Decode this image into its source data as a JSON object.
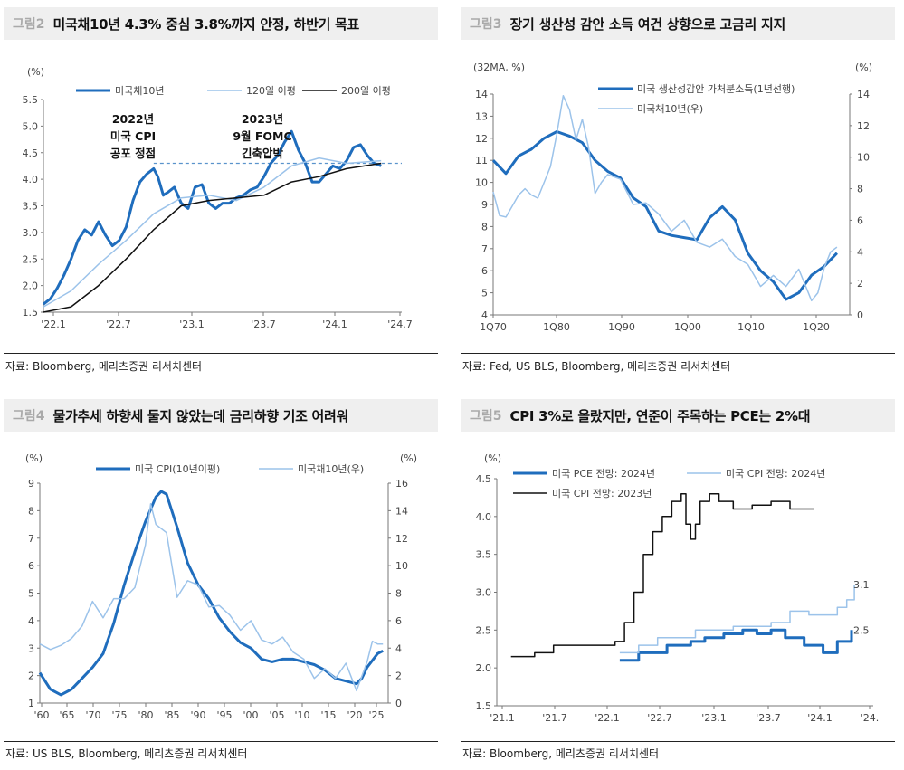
{
  "colors": {
    "dark_blue": "#1f6dbd",
    "light_blue": "#9cc3ea",
    "black": "#111111",
    "dashed": "#5a93cc"
  },
  "panels": [
    {
      "tag": "그림2",
      "title": "미국채10년 4.3% 중심 3.8%까지 안정, 하반기 목표",
      "source": "자료: Bloomberg, 메리츠증권 리서치센터"
    },
    {
      "tag": "그림3",
      "title": "장기 생산성 감안 소득 여건 상향으로 고금리 지지",
      "source": "자료: Fed, US BLS, Bloomberg, 메리츠증권 리서치센터"
    },
    {
      "tag": "그림4",
      "title": "물가추세 하향세 둘지 않았는데 금리하향 기조 어려워",
      "source": "자료: US BLS, Bloomberg, 메리츠증권 리서치센터"
    },
    {
      "tag": "그림5",
      "title": "CPI 3%로 올랐지만, 연준이 주목하는 PCE는 2%대",
      "source": "자료: Bloomberg, 메리츠증권 리서치센터"
    }
  ],
  "chart_data": [
    {
      "type": "line",
      "y_unit": "(%)",
      "ylim": [
        1.5,
        5.5
      ],
      "yticks": [
        "1.5",
        "2.0",
        "2.5",
        "3.0",
        "3.5",
        "4.0",
        "4.5",
        "5.0",
        "5.5"
      ],
      "xticks": [
        "'22.1",
        "'22.7",
        "'23.1",
        "'23.7",
        "'24.1",
        "'24.7"
      ],
      "xlim": [
        2022.0,
        2024.6
      ],
      "reference_line": 4.3,
      "annotations": [
        {
          "lines": [
            "2022년",
            "미국 CPI",
            "공포 정점"
          ],
          "x": 2022.8
        },
        {
          "lines": [
            "2023년",
            "9월 FOMC",
            "긴축압박"
          ],
          "x": 2023.75
        }
      ],
      "series": [
        {
          "name": "미국채10년",
          "color": "#1f6dbd",
          "width": 3,
          "x": [
            2022.0,
            2022.05,
            2022.1,
            2022.15,
            2022.2,
            2022.25,
            2022.3,
            2022.35,
            2022.4,
            2022.45,
            2022.5,
            2022.55,
            2022.6,
            2022.65,
            2022.7,
            2022.75,
            2022.8,
            2022.83,
            2022.87,
            2022.9,
            2022.95,
            2023.0,
            2023.05,
            2023.1,
            2023.15,
            2023.2,
            2023.25,
            2023.3,
            2023.35,
            2023.4,
            2023.45,
            2023.5,
            2023.55,
            2023.6,
            2023.65,
            2023.7,
            2023.75,
            2023.8,
            2023.85,
            2023.9,
            2023.95,
            2024.0,
            2024.05,
            2024.1,
            2024.15,
            2024.2,
            2024.25,
            2024.3,
            2024.35,
            2024.4,
            2024.45
          ],
          "y": [
            1.65,
            1.75,
            1.95,
            2.2,
            2.5,
            2.85,
            3.05,
            2.95,
            3.2,
            2.95,
            2.75,
            2.85,
            3.1,
            3.6,
            3.95,
            4.1,
            4.2,
            4.05,
            3.7,
            3.75,
            3.85,
            3.55,
            3.45,
            3.85,
            3.9,
            3.55,
            3.45,
            3.55,
            3.55,
            3.65,
            3.7,
            3.8,
            3.85,
            4.05,
            4.3,
            4.45,
            4.7,
            4.9,
            4.55,
            4.3,
            3.95,
            3.95,
            4.1,
            4.25,
            4.2,
            4.35,
            4.6,
            4.65,
            4.45,
            4.3,
            4.25
          ]
        },
        {
          "name": "120일 이평",
          "color": "#9cc3ea",
          "width": 1.5,
          "x": [
            2022.0,
            2022.2,
            2022.4,
            2022.6,
            2022.8,
            2023.0,
            2023.2,
            2023.4,
            2023.6,
            2023.8,
            2024.0,
            2024.2,
            2024.45
          ],
          "y": [
            1.6,
            1.9,
            2.4,
            2.85,
            3.35,
            3.65,
            3.7,
            3.6,
            3.85,
            4.25,
            4.4,
            4.3,
            4.35
          ]
        },
        {
          "name": "200일 이평",
          "color": "#111111",
          "width": 1.5,
          "x": [
            2022.0,
            2022.2,
            2022.4,
            2022.6,
            2022.8,
            2023.0,
            2023.2,
            2023.4,
            2023.6,
            2023.8,
            2024.0,
            2024.2,
            2024.45
          ],
          "y": [
            1.5,
            1.6,
            2.0,
            2.5,
            3.05,
            3.5,
            3.6,
            3.65,
            3.7,
            3.95,
            4.05,
            4.2,
            4.3
          ]
        }
      ]
    },
    {
      "type": "line",
      "y_unit_left": "(32MA, %)",
      "y_unit_right": "(%)",
      "ylim_left": [
        4,
        14
      ],
      "ylim_right": [
        0,
        14
      ],
      "yticks_left": [
        "4",
        "5",
        "6",
        "7",
        "8",
        "9",
        "10",
        "11",
        "12",
        "13",
        "14"
      ],
      "yticks_right": [
        "0",
        "2",
        "4",
        "6",
        "8",
        "10",
        "12",
        "14"
      ],
      "xticks": [
        "1Q70",
        "1Q80",
        "1Q90",
        "1Q00",
        "1Q10",
        "1Q20"
      ],
      "xlim": [
        1970,
        2026
      ],
      "series": [
        {
          "name": "미국 생산성감안 가처분소득(1년선행)",
          "axis": "left",
          "color": "#1f6dbd",
          "width": 3,
          "x": [
            1970,
            1972,
            1974,
            1976,
            1978,
            1980,
            1982,
            1984,
            1986,
            1988,
            1990,
            1992,
            1994,
            1996,
            1998,
            2000,
            2002,
            2004,
            2006,
            2008,
            2010,
            2012,
            2014,
            2016,
            2018,
            2020,
            2022,
            2024
          ],
          "y": [
            11.0,
            10.4,
            11.2,
            11.5,
            12.0,
            12.3,
            12.1,
            11.8,
            11.0,
            10.5,
            10.2,
            9.3,
            8.9,
            7.8,
            7.6,
            7.5,
            7.4,
            8.4,
            8.9,
            8.3,
            6.8,
            6.0,
            5.5,
            4.7,
            5.0,
            5.8,
            6.2,
            6.8
          ]
        },
        {
          "name": "미국채10년(우)",
          "axis": "right",
          "color": "#9cc3ea",
          "width": 1.5,
          "x": [
            1970,
            1971,
            1972,
            1973,
            1974,
            1975,
            1976,
            1977,
            1978,
            1979,
            1980,
            1981,
            1982,
            1983,
            1984,
            1985,
            1986,
            1987,
            1988,
            1990,
            1992,
            1994,
            1996,
            1998,
            2000,
            2002,
            2004,
            2006,
            2008,
            2010,
            2012,
            2014,
            2016,
            2018,
            2020,
            2021,
            2022,
            2023,
            2024
          ],
          "y": [
            7.8,
            6.3,
            6.2,
            6.9,
            7.6,
            8.0,
            7.6,
            7.4,
            8.4,
            9.4,
            11.5,
            13.9,
            13.0,
            11.1,
            12.4,
            10.6,
            7.7,
            8.4,
            8.9,
            8.6,
            7.0,
            7.1,
            6.4,
            5.3,
            6.0,
            4.6,
            4.3,
            4.8,
            3.7,
            3.2,
            1.8,
            2.5,
            1.8,
            2.9,
            0.9,
            1.4,
            3.0,
            4.0,
            4.3
          ]
        }
      ]
    },
    {
      "type": "line",
      "y_unit_left": "(%)",
      "y_unit_right": "(%)",
      "ylim_left": [
        1,
        9
      ],
      "ylim_right": [
        0,
        16
      ],
      "yticks_left": [
        "1",
        "2",
        "3",
        "4",
        "5",
        "6",
        "7",
        "8",
        "9"
      ],
      "yticks_right": [
        "0",
        "2",
        "4",
        "6",
        "8",
        "10",
        "12",
        "14",
        "16"
      ],
      "xticks": [
        "'60",
        "'65",
        "'70",
        "'75",
        "'80",
        "'85",
        "'90",
        "'95",
        "'00",
        "'05",
        "'10",
        "'15",
        "'20",
        "'25"
      ],
      "xlim": [
        1960,
        2026
      ],
      "series": [
        {
          "name": "미국 CPI(10년이평)",
          "axis": "left",
          "color": "#1f6dbd",
          "width": 3,
          "x": [
            1960,
            1962,
            1964,
            1966,
            1968,
            1970,
            1972,
            1974,
            1976,
            1978,
            1980,
            1982,
            1983,
            1984,
            1986,
            1988,
            1990,
            1992,
            1994,
            1996,
            1998,
            2000,
            2002,
            2004,
            2006,
            2008,
            2010,
            2012,
            2014,
            2016,
            2018,
            2020,
            2021,
            2022,
            2024,
            2025
          ],
          "y": [
            2.1,
            1.5,
            1.3,
            1.5,
            1.9,
            2.3,
            2.8,
            3.9,
            5.3,
            6.5,
            7.6,
            8.5,
            8.7,
            8.6,
            7.4,
            6.1,
            5.3,
            4.8,
            4.1,
            3.6,
            3.2,
            3.0,
            2.6,
            2.5,
            2.6,
            2.6,
            2.5,
            2.4,
            2.2,
            1.9,
            1.8,
            1.7,
            1.9,
            2.3,
            2.8,
            2.9
          ]
        },
        {
          "name": "미국채10년(우)",
          "axis": "right",
          "color": "#9cc3ea",
          "width": 1.5,
          "x": [
            1960,
            1962,
            1964,
            1966,
            1968,
            1970,
            1972,
            1974,
            1976,
            1978,
            1980,
            1981,
            1982,
            1984,
            1986,
            1988,
            1990,
            1992,
            1994,
            1996,
            1998,
            2000,
            2002,
            2004,
            2006,
            2008,
            2010,
            2012,
            2014,
            2016,
            2018,
            2020,
            2022,
            2023,
            2024,
            2025
          ],
          "y": [
            4.3,
            3.9,
            4.2,
            4.7,
            5.6,
            7.4,
            6.2,
            7.6,
            7.6,
            8.4,
            11.5,
            14.5,
            13.0,
            12.4,
            7.7,
            8.9,
            8.6,
            7.0,
            7.1,
            6.4,
            5.3,
            6.0,
            4.6,
            4.3,
            4.8,
            3.7,
            3.2,
            1.8,
            2.5,
            1.8,
            2.9,
            0.9,
            3.0,
            4.5,
            4.3,
            4.3
          ]
        }
      ]
    },
    {
      "type": "line",
      "y_unit": "(%)",
      "ylim": [
        1.5,
        4.5
      ],
      "yticks": [
        "1.5",
        "2.0",
        "2.5",
        "3.0",
        "3.5",
        "4.0",
        "4.5"
      ],
      "xticks": [
        "'21.1",
        "'21.7",
        "'22.1",
        "'22.7",
        "'23.1",
        "'23.7",
        "'24.1",
        "'24."
      ],
      "xlim": [
        2021.0,
        2024.98
      ],
      "end_labels": [
        {
          "text": "3.1",
          "value": 3.1,
          "series": "미국 CPI 전망: 2024년"
        },
        {
          "text": "2.5",
          "value": 2.5,
          "series": "미국 PCE 전망: 2024년"
        }
      ],
      "series": [
        {
          "name": "미국 PCE 전망: 2024년",
          "color": "#1f6dbd",
          "width": 3,
          "step": true,
          "x": [
            2022.3,
            2022.5,
            2022.65,
            2022.8,
            2022.95,
            2023.05,
            2023.2,
            2023.4,
            2023.6,
            2023.75,
            2023.9,
            2024.05,
            2024.25,
            2024.45,
            2024.6,
            2024.75
          ],
          "y": [
            2.1,
            2.2,
            2.2,
            2.3,
            2.3,
            2.35,
            2.4,
            2.45,
            2.5,
            2.45,
            2.5,
            2.4,
            2.3,
            2.2,
            2.35,
            2.5
          ]
        },
        {
          "name": "미국 CPI 전망: 2024년",
          "color": "#9cc3ea",
          "width": 1.5,
          "step": true,
          "x": [
            2022.3,
            2022.5,
            2022.7,
            2022.9,
            2023.1,
            2023.3,
            2023.5,
            2023.7,
            2023.9,
            2024.1,
            2024.3,
            2024.45,
            2024.6,
            2024.7,
            2024.78
          ],
          "y": [
            2.2,
            2.3,
            2.4,
            2.4,
            2.5,
            2.5,
            2.55,
            2.55,
            2.6,
            2.75,
            2.7,
            2.7,
            2.8,
            2.9,
            3.1
          ]
        },
        {
          "name": "미국 CPI 전망: 2023년",
          "color": "#111111",
          "width": 1.5,
          "step": true,
          "x": [
            2021.15,
            2021.4,
            2021.6,
            2021.9,
            2022.1,
            2022.25,
            2022.35,
            2022.45,
            2022.55,
            2022.65,
            2022.75,
            2022.85,
            2022.95,
            2023.0,
            2023.05,
            2023.1,
            2023.15,
            2023.25,
            2023.35,
            2023.5,
            2023.7,
            2023.9,
            2024.1,
            2024.35
          ],
          "y": [
            2.15,
            2.2,
            2.3,
            2.3,
            2.3,
            2.35,
            2.6,
            3.0,
            3.5,
            3.8,
            4.0,
            4.2,
            4.3,
            3.9,
            3.7,
            3.9,
            4.2,
            4.3,
            4.2,
            4.1,
            4.15,
            4.2,
            4.1,
            4.1
          ]
        }
      ]
    }
  ]
}
